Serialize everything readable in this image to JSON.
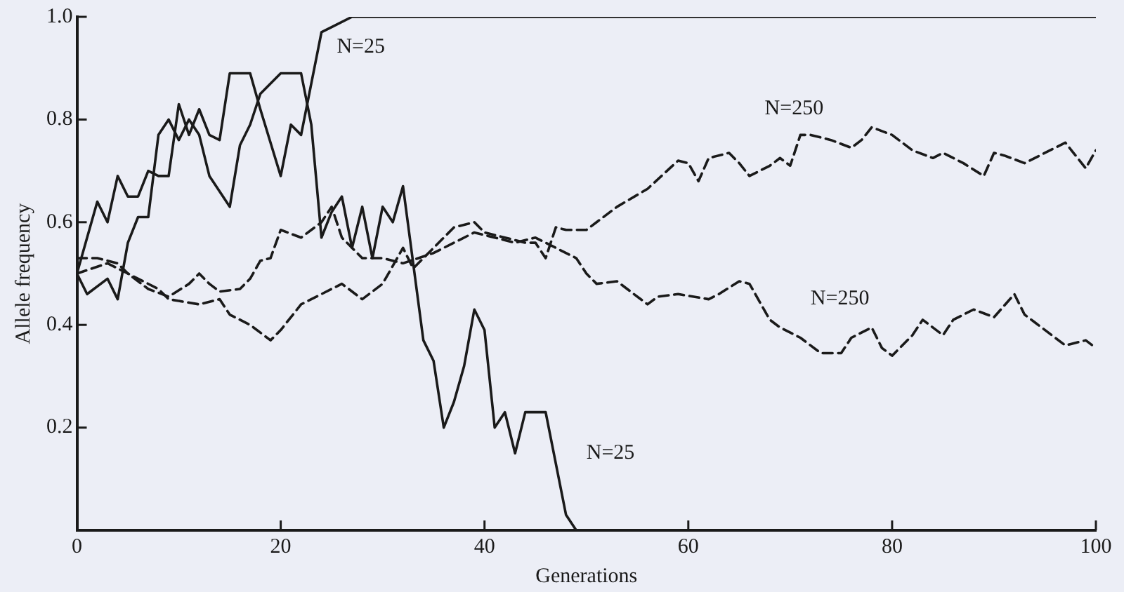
{
  "chart_data": {
    "type": "line",
    "xlabel": "Generations",
    "ylabel": "Allele frequency",
    "xlim": [
      0,
      100
    ],
    "ylim": [
      0,
      1
    ],
    "xticks": [
      0,
      20,
      40,
      60,
      80,
      100
    ],
    "yticks": [
      0.2,
      0.4,
      0.6,
      0.8,
      {
        "value": 1,
        "label": "1.0"
      }
    ],
    "grid": false,
    "legend": false,
    "marker": "none",
    "series": [
      {
        "name": "N=25",
        "color": "#1a1a1a",
        "line_style": "solid",
        "x": [
          0,
          1,
          2,
          3,
          4,
          5,
          6,
          7,
          8,
          9,
          10,
          11,
          12,
          13,
          14,
          15,
          17,
          18,
          20,
          21,
          22,
          23,
          24,
          25,
          27,
          100
        ],
        "values": [
          0.5,
          0.57,
          0.64,
          0.6,
          0.69,
          0.65,
          0.65,
          0.7,
          0.69,
          0.69,
          0.83,
          0.77,
          0.82,
          0.77,
          0.76,
          0.89,
          0.89,
          0.82,
          0.69,
          0.79,
          0.77,
          0.87,
          0.97,
          0.98,
          1,
          1
        ]
      },
      {
        "name": "N=25",
        "color": "#1a1a1a",
        "line_style": "solid",
        "x": [
          0,
          1,
          3,
          4,
          5,
          6,
          7,
          8,
          9,
          10,
          11,
          12,
          13,
          15,
          16,
          17,
          18,
          20,
          22,
          23,
          24,
          25,
          26,
          27,
          28,
          29,
          30,
          31,
          32,
          34,
          35,
          36,
          37,
          38,
          39,
          40,
          41,
          42,
          43,
          44,
          46,
          48,
          49,
          100
        ],
        "values": [
          0.5,
          0.46,
          0.49,
          0.45,
          0.56,
          0.61,
          0.61,
          0.77,
          0.8,
          0.76,
          0.8,
          0.77,
          0.69,
          0.63,
          0.75,
          0.79,
          0.85,
          0.89,
          0.89,
          0.79,
          0.57,
          0.62,
          0.65,
          0.55,
          0.63,
          0.53,
          0.63,
          0.6,
          0.67,
          0.37,
          0.33,
          0.2,
          0.25,
          0.32,
          0.43,
          0.39,
          0.2,
          0.23,
          0.15,
          0.23,
          0.23,
          0.03,
          0,
          0
        ]
      },
      {
        "name": "N=250",
        "color": "#1a1a1a",
        "line_style": "dashed",
        "x": [
          0,
          3,
          5,
          8,
          9,
          12,
          14,
          15,
          17,
          19,
          20,
          22,
          24,
          26,
          28,
          30,
          32,
          33,
          35,
          37,
          39,
          40,
          42,
          44,
          45,
          46,
          47,
          48,
          50,
          51,
          53,
          56,
          59,
          60,
          61,
          62,
          64,
          65,
          66,
          68,
          69,
          70,
          71,
          72,
          74,
          76,
          77,
          78,
          80,
          82,
          84,
          85,
          87,
          89,
          90,
          91,
          93,
          95,
          97,
          99,
          100
        ],
        "values": [
          0.5,
          0.52,
          0.5,
          0.47,
          0.45,
          0.44,
          0.45,
          0.42,
          0.4,
          0.37,
          0.39,
          0.44,
          0.46,
          0.48,
          0.45,
          0.48,
          0.55,
          0.51,
          0.55,
          0.59,
          0.6,
          0.58,
          0.57,
          0.56,
          0.56,
          0.53,
          0.59,
          0.585,
          0.585,
          0.6,
          0.63,
          0.665,
          0.72,
          0.715,
          0.68,
          0.725,
          0.735,
          0.715,
          0.69,
          0.71,
          0.725,
          0.71,
          0.77,
          0.77,
          0.76,
          0.745,
          0.76,
          0.785,
          0.77,
          0.74,
          0.725,
          0.735,
          0.715,
          0.69,
          0.735,
          0.73,
          0.715,
          0.735,
          0.755,
          0.705,
          0.74
        ]
      },
      {
        "name": "N=250",
        "color": "#1a1a1a",
        "line_style": "dashed",
        "x": [
          0,
          2,
          4,
          5,
          7,
          9,
          11,
          12,
          13,
          14,
          16,
          17,
          18,
          19,
          20,
          22,
          24,
          25,
          26,
          28,
          30,
          32,
          35,
          37,
          39,
          41,
          43,
          45,
          47,
          49,
          50,
          51,
          53,
          56,
          57,
          59,
          62,
          63,
          65,
          66,
          68,
          69,
          71,
          73,
          75,
          76,
          78,
          79,
          80,
          82,
          83,
          85,
          86,
          88,
          90,
          92,
          93,
          94,
          96,
          97,
          99,
          100
        ],
        "values": [
          0.53,
          0.53,
          0.52,
          0.5,
          0.47,
          0.455,
          0.48,
          0.5,
          0.48,
          0.465,
          0.47,
          0.49,
          0.525,
          0.53,
          0.585,
          0.57,
          0.6,
          0.63,
          0.57,
          0.53,
          0.53,
          0.52,
          0.54,
          0.56,
          0.58,
          0.57,
          0.56,
          0.57,
          0.55,
          0.53,
          0.5,
          0.48,
          0.485,
          0.44,
          0.455,
          0.46,
          0.45,
          0.46,
          0.485,
          0.48,
          0.41,
          0.395,
          0.375,
          0.345,
          0.345,
          0.375,
          0.395,
          0.355,
          0.34,
          0.38,
          0.41,
          0.38,
          0.41,
          0.43,
          0.415,
          0.46,
          0.42,
          0.405,
          0.375,
          0.36,
          0.37,
          0.355
        ]
      }
    ]
  }
}
